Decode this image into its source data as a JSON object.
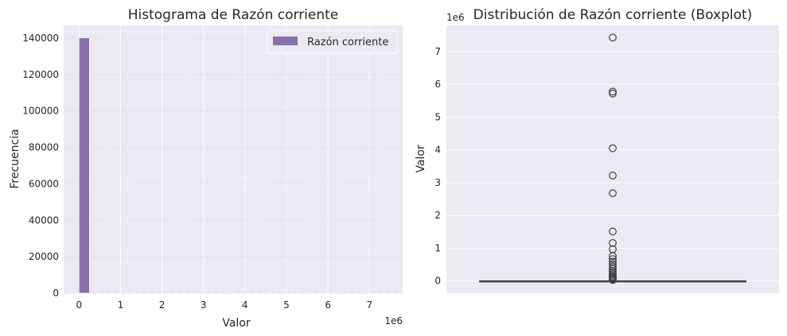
{
  "chart_data": [
    {
      "type": "bar",
      "title": "Histograma de Razón corriente",
      "xlabel": "Valor",
      "ylabel": "Frecuencia",
      "x_offset_label": "1e6",
      "xlim": [
        -0.37,
        7.8
      ],
      "ylim": [
        0,
        147000
      ],
      "x_ticks": [
        0,
        1,
        2,
        3,
        4,
        5,
        6,
        7
      ],
      "y_ticks": [
        0,
        20000,
        40000,
        60000,
        80000,
        100000,
        120000,
        140000
      ],
      "bins": [
        {
          "x0": 0,
          "x1": 0.25,
          "count": 140200
        }
      ],
      "legend": {
        "label": "Razón corriente",
        "placement": "upper right"
      },
      "grid": true,
      "colors": {
        "bar": "#8672a8",
        "background": "#eaeaf2",
        "grid": "#ffffff"
      }
    },
    {
      "type": "boxplot",
      "title": "Distribución de Razón corriente (Boxplot)",
      "ylabel": "Valor",
      "y_offset_label": "1e6",
      "ylim": [
        -0.37,
        7.8
      ],
      "y_ticks": [
        0,
        1,
        2,
        3,
        4,
        5,
        6,
        7
      ],
      "box": {
        "q1": 0.0,
        "median": 0.0,
        "q3": 0.0,
        "whisker_low": 0.0,
        "whisker_high": 0.0
      },
      "outliers": [
        7.43,
        5.78,
        5.72,
        4.05,
        3.22,
        2.68,
        1.51,
        1.16,
        0.97,
        0.76,
        0.67,
        0.59,
        0.51,
        0.44,
        0.37,
        0.31,
        0.26,
        0.21,
        0.17,
        0.13,
        0.1,
        0.07,
        0.05,
        0.03
      ],
      "grid": true,
      "colors": {
        "box_line": "#3f3f3f",
        "background": "#eaeaf2",
        "grid": "#ffffff"
      }
    }
  ]
}
